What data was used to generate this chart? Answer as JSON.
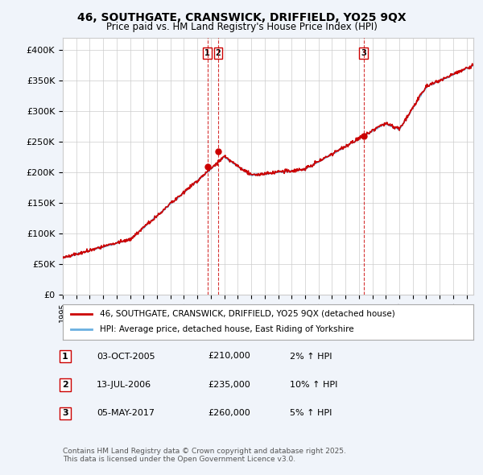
{
  "title": "46, SOUTHGATE, CRANSWICK, DRIFFIELD, YO25 9QX",
  "subtitle": "Price paid vs. HM Land Registry's House Price Index (HPI)",
  "ylabel_ticks": [
    "£0",
    "£50K",
    "£100K",
    "£150K",
    "£200K",
    "£250K",
    "£300K",
    "£350K",
    "£400K"
  ],
  "ytick_values": [
    0,
    50000,
    100000,
    150000,
    200000,
    250000,
    300000,
    350000,
    400000
  ],
  "ylim": [
    0,
    420000
  ],
  "xlim_start": 1995.0,
  "xlim_end": 2025.5,
  "hpi_color": "#6ab0e0",
  "price_color": "#cc0000",
  "vline_color": "#cc0000",
  "marker_color": "#cc0000",
  "marker_face": "#cc0000",
  "transactions": [
    {
      "label": "1",
      "date_year": 2005.75,
      "price": 210000
    },
    {
      "label": "2",
      "date_year": 2006.54,
      "price": 235000
    },
    {
      "label": "3",
      "date_year": 2017.34,
      "price": 260000
    }
  ],
  "legend_line1": "46, SOUTHGATE, CRANSWICK, DRIFFIELD, YO25 9QX (detached house)",
  "legend_line2": "HPI: Average price, detached house, East Riding of Yorkshire",
  "table_rows": [
    {
      "num": "1",
      "date": "03-OCT-2005",
      "price": "£210,000",
      "change": "2% ↑ HPI"
    },
    {
      "num": "2",
      "date": "13-JUL-2006",
      "price": "£235,000",
      "change": "10% ↑ HPI"
    },
    {
      "num": "3",
      "date": "05-MAY-2017",
      "price": "£260,000",
      "change": "5% ↑ HPI"
    }
  ],
  "footer": "Contains HM Land Registry data © Crown copyright and database right 2025.\nThis data is licensed under the Open Government Licence v3.0.",
  "background_color": "#f0f4fa",
  "plot_bg_color": "#ffffff",
  "grid_color": "#cccccc"
}
